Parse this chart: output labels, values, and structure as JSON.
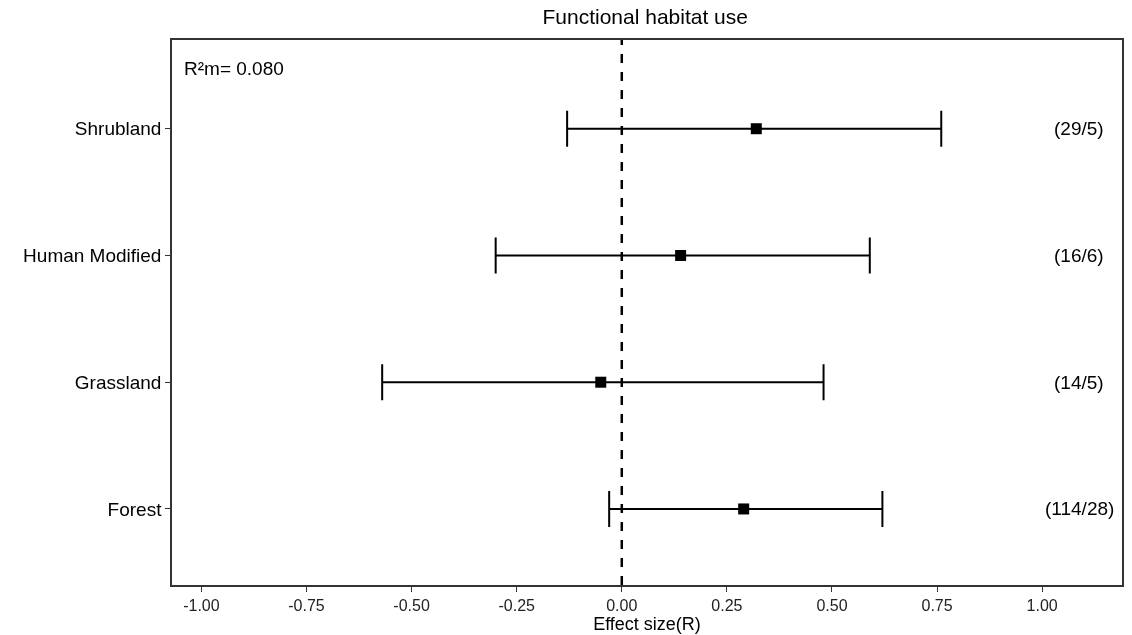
{
  "chart_data": {
    "type": "scatter",
    "title": "Functional habitat use",
    "xlabel": "Effect size(R)",
    "orientation": "horizontal",
    "categories": [
      "Shrubland",
      "Human Modified",
      "Grassland",
      "Forest"
    ],
    "series": [
      {
        "color": "#000000",
        "values": [
          0.32,
          0.14,
          -0.05,
          0.29
        ],
        "errors": [
          [
            -0.13,
            0.76
          ],
          [
            -0.3,
            0.59
          ],
          [
            -0.57,
            0.48
          ],
          [
            -0.03,
            0.62
          ]
        ]
      }
    ],
    "xlim": [
      -1.07,
      1.19
    ],
    "xticks": [
      {
        "value": -1,
        "label": "-1.00"
      },
      {
        "value": -0.75,
        "label": "-0.75"
      },
      {
        "value": -0.5,
        "label": "-0.50"
      },
      {
        "value": -0.25,
        "label": "-0.25"
      },
      {
        "value": 0,
        "label": "0.00"
      },
      {
        "value": 0.25,
        "label": "0.25"
      },
      {
        "value": 0.5,
        "label": "0.50"
      },
      {
        "value": 0.75,
        "label": "0.75"
      },
      {
        "value": 1,
        "label": "1.00"
      }
    ],
    "marker": "square",
    "grid": false,
    "ref_lines": [
      {
        "axis": "x",
        "value": 0,
        "line_style": "dashed",
        "color": "#000000"
      }
    ],
    "annotations": [
      "R²m= 0.080",
      "(29/5)",
      "(16/6)",
      "(14/5)",
      "(114/28)"
    ]
  }
}
